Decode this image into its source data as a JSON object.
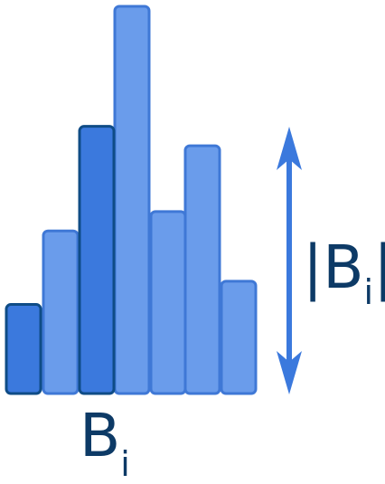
{
  "colors": {
    "bar_fill_light": "#6a9ceb",
    "bar_stroke_light": "#3f78d6",
    "bar_fill_highlight": "#3b79dd",
    "bar_stroke_highlight": "#0f4c86",
    "arrow": "#3b79dd",
    "text": "#0d3a66",
    "background": "#ffffff"
  },
  "bars": [
    {
      "height": 0.23,
      "highlighted": true
    },
    {
      "height": 0.42,
      "highlighted": false
    },
    {
      "height": 0.69,
      "highlighted": true
    },
    {
      "height": 1.0,
      "highlighted": false
    },
    {
      "height": 0.47,
      "highlighted": false
    },
    {
      "height": 0.64,
      "highlighted": false
    },
    {
      "height": 0.29,
      "highlighted": false
    }
  ],
  "labels": {
    "bin_main": "B",
    "bin_sub": "i",
    "size_prefix": "|B",
    "size_sub": "i",
    "size_suffix": "|"
  }
}
